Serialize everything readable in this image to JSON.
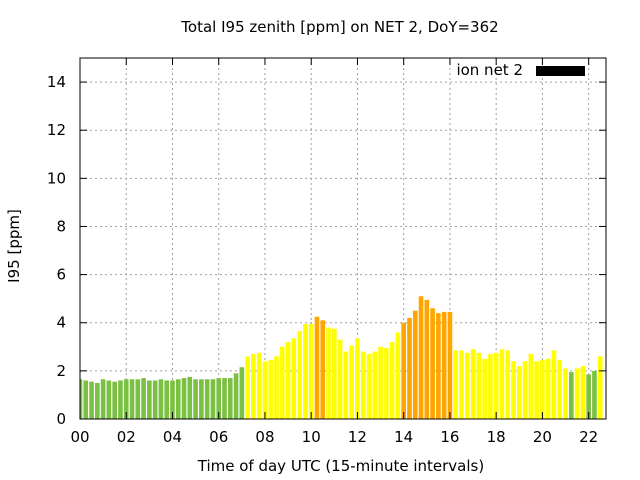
{
  "chart_data": {
    "type": "bar",
    "title": "Total I95 zenith [ppm] on NET 2, DoY=362",
    "xlabel": "Time of day UTC (15-minute intervals)",
    "ylabel": "I95 [ppm]",
    "xlim": [
      0,
      22.75
    ],
    "ylim": [
      0,
      15
    ],
    "x_ticks": [
      0,
      2,
      4,
      6,
      8,
      10,
      12,
      14,
      16,
      18,
      20,
      22
    ],
    "x_tick_labels": [
      "00",
      "02",
      "04",
      "06",
      "08",
      "10",
      "12",
      "14",
      "16",
      "18",
      "20",
      "22"
    ],
    "y_ticks": [
      0,
      2,
      4,
      6,
      8,
      10,
      12,
      14
    ],
    "y_tick_labels": [
      "0",
      "2",
      "4",
      "6",
      "8",
      "10",
      "12",
      "14"
    ],
    "grid": true,
    "legend": {
      "label": "ion net 2",
      "position": "top-right",
      "color": "#000000"
    },
    "colors": {
      "green": "#7ac143",
      "yellow": "#ffff00",
      "orange": "#ffa500"
    },
    "bar_width_hours": 0.2,
    "series": [
      {
        "x": [
          0.0,
          0.25,
          0.5,
          0.75,
          1.0,
          1.25,
          1.5,
          1.75,
          2.0,
          2.25,
          2.5,
          2.75,
          3.0,
          3.25,
          3.5,
          3.75,
          4.0,
          4.25,
          4.5,
          4.75,
          5.0,
          5.25,
          5.5,
          5.75,
          6.0,
          6.25,
          6.5,
          6.75,
          7.0,
          7.25,
          7.5,
          7.75,
          8.0,
          8.25,
          8.5,
          8.75,
          9.0,
          9.25,
          9.5,
          9.75,
          10.0,
          10.25,
          10.5,
          10.75,
          11.0,
          11.25,
          11.5,
          11.75,
          12.0,
          12.25,
          12.5,
          12.75,
          13.0,
          13.25,
          13.5,
          13.75,
          14.0,
          14.25,
          14.5,
          14.75,
          15.0,
          15.25,
          15.5,
          15.75,
          16.0,
          16.25,
          16.5,
          16.75,
          17.0,
          17.25,
          17.5,
          17.75,
          18.0,
          18.25,
          18.5,
          18.75,
          19.0,
          19.25,
          19.5,
          19.75,
          20.0,
          20.25,
          20.5,
          20.75,
          21.0,
          21.25,
          21.5,
          21.75,
          22.0,
          22.25,
          22.5,
          22.75
        ],
        "values": [
          1.65,
          1.6,
          1.55,
          1.5,
          1.65,
          1.6,
          1.55,
          1.6,
          1.65,
          1.65,
          1.65,
          1.7,
          1.6,
          1.6,
          1.65,
          1.6,
          1.6,
          1.65,
          1.7,
          1.75,
          1.65,
          1.65,
          1.65,
          1.65,
          1.7,
          1.7,
          1.7,
          1.9,
          2.15,
          2.6,
          2.7,
          2.75,
          2.4,
          2.45,
          2.6,
          3.0,
          3.2,
          3.35,
          3.65,
          3.95,
          3.95,
          4.25,
          4.1,
          3.8,
          3.75,
          3.3,
          2.8,
          3.05,
          3.35,
          2.8,
          2.7,
          2.8,
          3.0,
          2.95,
          3.2,
          3.6,
          4.0,
          4.2,
          4.5,
          5.1,
          4.95,
          4.6,
          4.4,
          4.45,
          4.45,
          2.85,
          2.85,
          2.75,
          2.9,
          2.75,
          2.5,
          2.7,
          2.75,
          2.9,
          2.85,
          2.4,
          2.2,
          2.4,
          2.7,
          2.4,
          2.45,
          2.5,
          2.85,
          2.45,
          2.1,
          1.95,
          2.1,
          2.2,
          1.85,
          2.0,
          2.6,
          0.0
        ],
        "colors": [
          "green",
          "green",
          "green",
          "green",
          "green",
          "green",
          "green",
          "green",
          "green",
          "green",
          "green",
          "green",
          "green",
          "green",
          "green",
          "green",
          "green",
          "green",
          "green",
          "green",
          "green",
          "green",
          "green",
          "green",
          "green",
          "green",
          "green",
          "green",
          "green",
          "yellow",
          "yellow",
          "yellow",
          "yellow",
          "yellow",
          "yellow",
          "yellow",
          "yellow",
          "yellow",
          "yellow",
          "yellow",
          "yellow",
          "orange",
          "orange",
          "yellow",
          "yellow",
          "yellow",
          "yellow",
          "yellow",
          "yellow",
          "yellow",
          "yellow",
          "yellow",
          "yellow",
          "yellow",
          "yellow",
          "yellow",
          "orange",
          "orange",
          "orange",
          "orange",
          "orange",
          "orange",
          "orange",
          "orange",
          "orange",
          "yellow",
          "yellow",
          "yellow",
          "yellow",
          "yellow",
          "yellow",
          "yellow",
          "yellow",
          "yellow",
          "yellow",
          "yellow",
          "yellow",
          "yellow",
          "yellow",
          "yellow",
          "yellow",
          "yellow",
          "yellow",
          "yellow",
          "yellow",
          "green",
          "yellow",
          "yellow",
          "green",
          "green",
          "yellow",
          "yellow"
        ]
      }
    ]
  }
}
